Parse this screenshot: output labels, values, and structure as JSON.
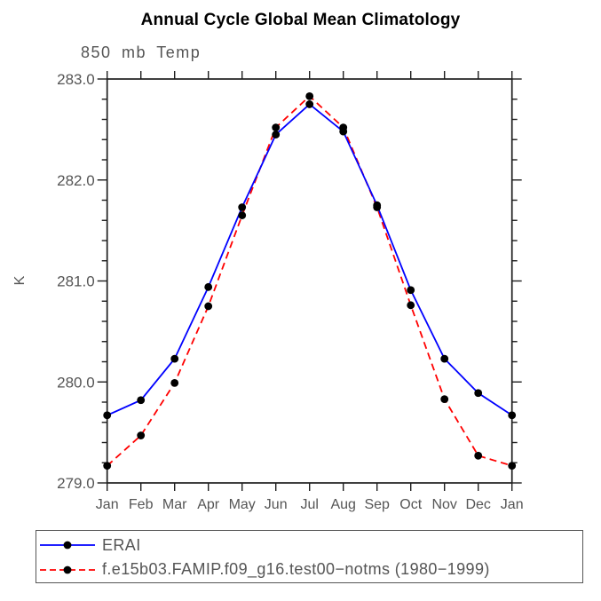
{
  "title": "Annual Cycle Global Mean Climatology",
  "chart_data": {
    "type": "line",
    "title": "Annual Cycle Global Mean Climatology",
    "subtitle": "850 mb Temp",
    "ylabel": "K",
    "xlabel": "",
    "categories": [
      "Jan",
      "Feb",
      "Mar",
      "Apr",
      "May",
      "Jun",
      "Jul",
      "Aug",
      "Sep",
      "Oct",
      "Nov",
      "Dec",
      "Jan"
    ],
    "ylim": [
      279.0,
      283.0
    ],
    "ytick_major": 1.0,
    "ytick_minor": 0.2,
    "ytick_labels": [
      "283.0",
      "282.0",
      "281.0",
      "280.0",
      "279.0"
    ],
    "grid": false,
    "legend_position": "bottom-left-box",
    "axis_color": "#1e1e1e",
    "text_color": "#555555",
    "series": [
      {
        "name": "ERAI",
        "color": "#0000ff",
        "line_style": "solid",
        "marker": "filled-circle",
        "marker_color": "#000000",
        "values": [
          279.67,
          279.82,
          280.23,
          280.94,
          281.73,
          282.45,
          282.75,
          282.48,
          281.75,
          280.91,
          280.23,
          279.89,
          279.67
        ]
      },
      {
        "name": "f.e15b03.FAMIP.f09_g16.test00−notms (1980−1999)",
        "color": "#ff0000",
        "line_style": "dashed",
        "marker": "filled-circle",
        "marker_color": "#000000",
        "values": [
          279.17,
          279.47,
          279.99,
          280.75,
          281.65,
          282.52,
          282.83,
          282.52,
          281.73,
          280.76,
          279.83,
          279.27,
          279.17
        ]
      }
    ]
  }
}
